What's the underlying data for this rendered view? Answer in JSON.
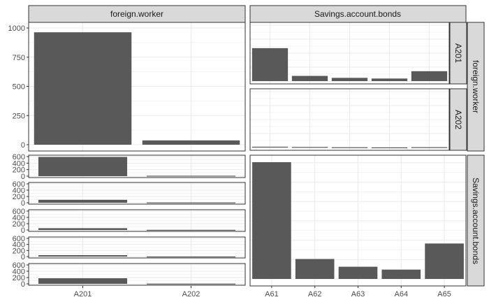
{
  "chart_data": {
    "type": "bar",
    "layout": "facet matrix of bar charts (pairs plot style)",
    "column_strips": [
      "foreign.worker",
      "Savings.account.bonds"
    ],
    "row_strips": [
      "foreign.worker",
      "Savings.account.bonds"
    ],
    "grid": true,
    "colors": {
      "bar": "#595959",
      "strip_fill": "#d9d9d9",
      "panel_border": "#333333",
      "grid": "#ebebeb"
    },
    "panels": {
      "fw_by_fw": {
        "categories": [
          "A201",
          "A202"
        ],
        "values": [
          963,
          37
        ],
        "ylim": [
          0,
          1000
        ],
        "yticks": [
          0,
          250,
          500,
          750,
          1000
        ],
        "ytick_labels": [
          "0",
          "250",
          "500",
          "750",
          "1000"
        ]
      },
      "fw_by_sav": {
        "sub_rows": [
          {
            "label": "A201",
            "categories": [
              "A61",
              "A62",
              "A63",
              "A64",
              "A65"
            ],
            "values": [
              589,
              93,
              58,
              46,
              177
            ]
          },
          {
            "label": "A202",
            "categories": [
              "A61",
              "A62",
              "A63",
              "A64",
              "A65"
            ],
            "values": [
              14,
              10,
              5,
              2,
              6
            ]
          }
        ],
        "ylim": [
          0,
          1000
        ]
      },
      "sav_by_fw": {
        "sub_rows": [
          {
            "categories": [
              "A201",
              "A202"
            ],
            "values": [
              589,
              14
            ]
          },
          {
            "categories": [
              "A201",
              "A202"
            ],
            "values": [
              93,
              10
            ]
          },
          {
            "categories": [
              "A201",
              "A202"
            ],
            "values": [
              58,
              5
            ]
          },
          {
            "categories": [
              "A201",
              "A202"
            ],
            "values": [
              46,
              2
            ]
          },
          {
            "categories": [
              "A201",
              "A202"
            ],
            "values": [
              177,
              6
            ]
          }
        ],
        "ylim": [
          0,
          600
        ],
        "yticks": [
          0,
          200,
          400,
          600
        ],
        "ytick_labels": [
          "0",
          "200",
          "400",
          "600"
        ]
      },
      "sav_by_sav": {
        "categories": [
          "A61",
          "A62",
          "A63",
          "A64",
          "A65"
        ],
        "values": [
          603,
          103,
          63,
          48,
          183
        ],
        "ylim": [
          0,
          603
        ]
      }
    },
    "x_tick_labels": {
      "left": [
        "A201",
        "A202"
      ],
      "right": [
        "A61",
        "A62",
        "A63",
        "A64",
        "A65"
      ]
    }
  }
}
